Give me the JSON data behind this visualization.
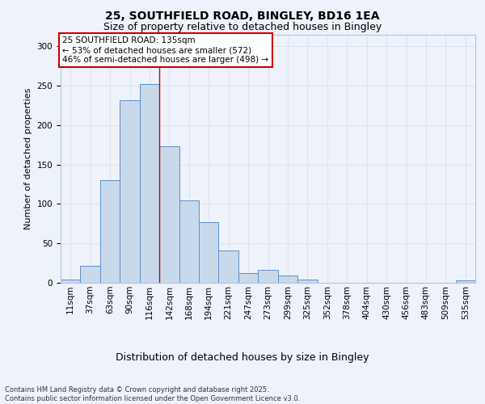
{
  "title_line1": "25, SOUTHFIELD ROAD, BINGLEY, BD16 1EA",
  "title_line2": "Size of property relative to detached houses in Bingley",
  "xlabel": "Distribution of detached houses by size in Bingley",
  "ylabel": "Number of detached properties",
  "footer": "Contains HM Land Registry data © Crown copyright and database right 2025.\nContains public sector information licensed under the Open Government Licence v3.0.",
  "bin_labels": [
    "11sqm",
    "37sqm",
    "63sqm",
    "90sqm",
    "116sqm",
    "142sqm",
    "168sqm",
    "194sqm",
    "221sqm",
    "247sqm",
    "273sqm",
    "299sqm",
    "325sqm",
    "352sqm",
    "378sqm",
    "404sqm",
    "430sqm",
    "456sqm",
    "483sqm",
    "509sqm",
    "535sqm"
  ],
  "bar_heights": [
    4,
    22,
    130,
    232,
    252,
    173,
    105,
    77,
    41,
    12,
    16,
    9,
    4,
    0,
    0,
    0,
    0,
    0,
    0,
    0,
    3
  ],
  "bar_color": "#c9d9ec",
  "bar_edge_color": "#5b8fc9",
  "grid_color": "#dce4f0",
  "background_color": "#eef2fa",
  "annotation_text": "25 SOUTHFIELD ROAD: 135sqm\n← 53% of detached houses are smaller (572)\n46% of semi-detached houses are larger (498) →",
  "annotation_box_color": "#ffffff",
  "annotation_box_edge": "#cc0000",
  "red_line_x": 4.5,
  "ylim": [
    0,
    315
  ],
  "yticks": [
    0,
    50,
    100,
    150,
    200,
    250,
    300
  ],
  "title1_fontsize": 10,
  "title2_fontsize": 9,
  "ylabel_fontsize": 8,
  "xlabel_fontsize": 9,
  "tick_fontsize": 7.5,
  "annotation_fontsize": 7.5,
  "footer_fontsize": 6
}
